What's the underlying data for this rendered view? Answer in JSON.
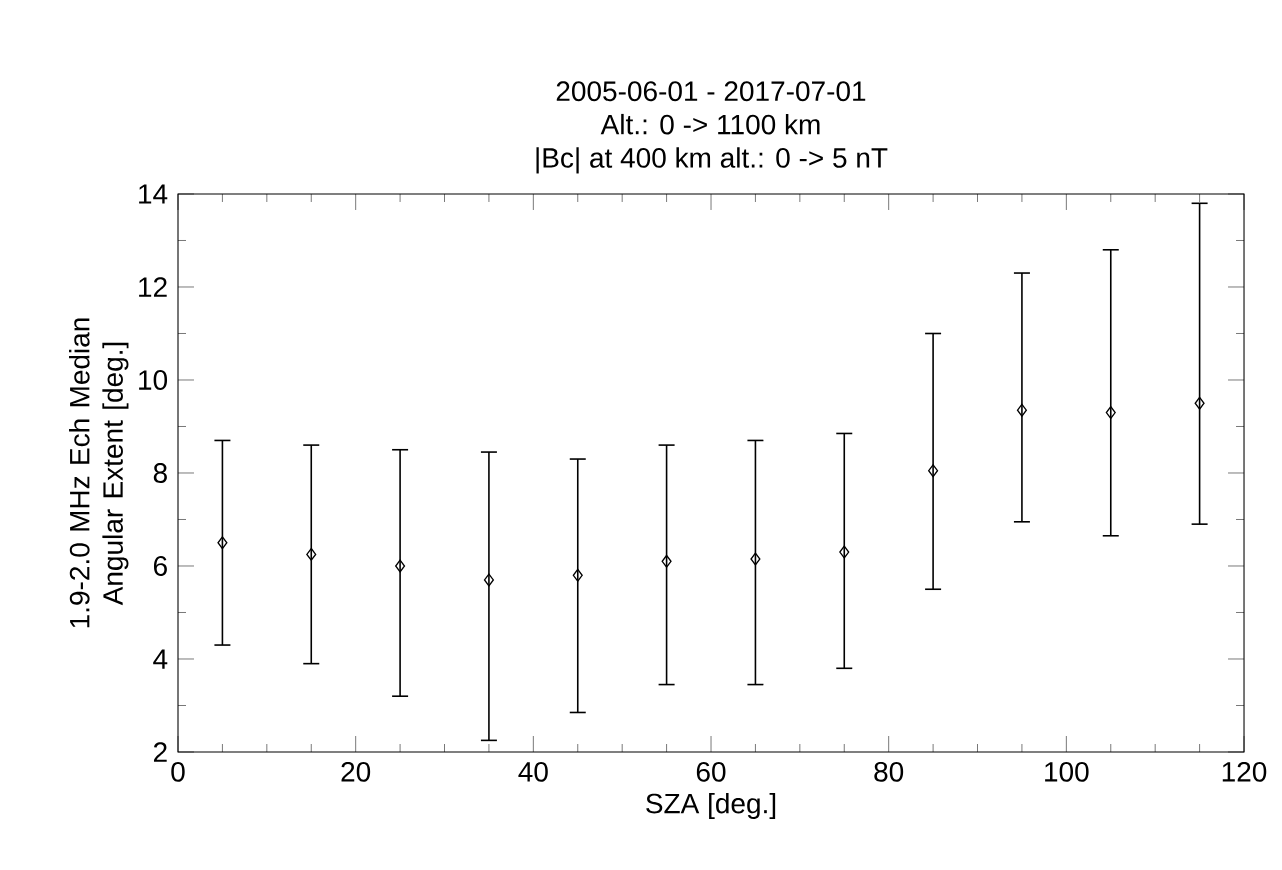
{
  "chart_data": {
    "type": "scatter",
    "title": "2005-06-01 - 2017-07-01",
    "subtitle": "Alt.: 0 -> 1100 km",
    "annotations": [
      "|Bc| at 400 km alt.: 0 -> 5 nT"
    ],
    "xlabel": "SZA [deg.]",
    "ylabel": "1.9-2.0 MHz Ech Median Angular Extent [deg.]",
    "x": [
      5,
      15,
      25,
      35,
      45,
      55,
      65,
      75,
      85,
      95,
      105,
      115
    ],
    "values": [
      6.5,
      6.25,
      6.0,
      5.7,
      5.8,
      6.1,
      6.15,
      6.3,
      8.05,
      9.35,
      9.3,
      9.5
    ],
    "errors": [
      [
        4.3,
        8.7
      ],
      [
        3.9,
        8.6
      ],
      [
        3.2,
        8.5
      ],
      [
        2.25,
        8.45
      ],
      [
        2.85,
        8.3
      ],
      [
        3.45,
        8.6
      ],
      [
        3.45,
        8.7
      ],
      [
        3.8,
        8.85
      ],
      [
        5.5,
        11.0
      ],
      [
        6.95,
        12.3
      ],
      [
        6.65,
        12.8
      ],
      [
        6.9,
        13.8
      ]
    ],
    "color": "#000000",
    "marker": "diamond",
    "grid": false,
    "xlim": [
      0,
      120
    ],
    "xticks": [
      0,
      20,
      40,
      60,
      80,
      100,
      120
    ],
    "ylim": [
      2,
      14
    ],
    "yticks": [
      2,
      4,
      6,
      8,
      10,
      12,
      14
    ]
  }
}
